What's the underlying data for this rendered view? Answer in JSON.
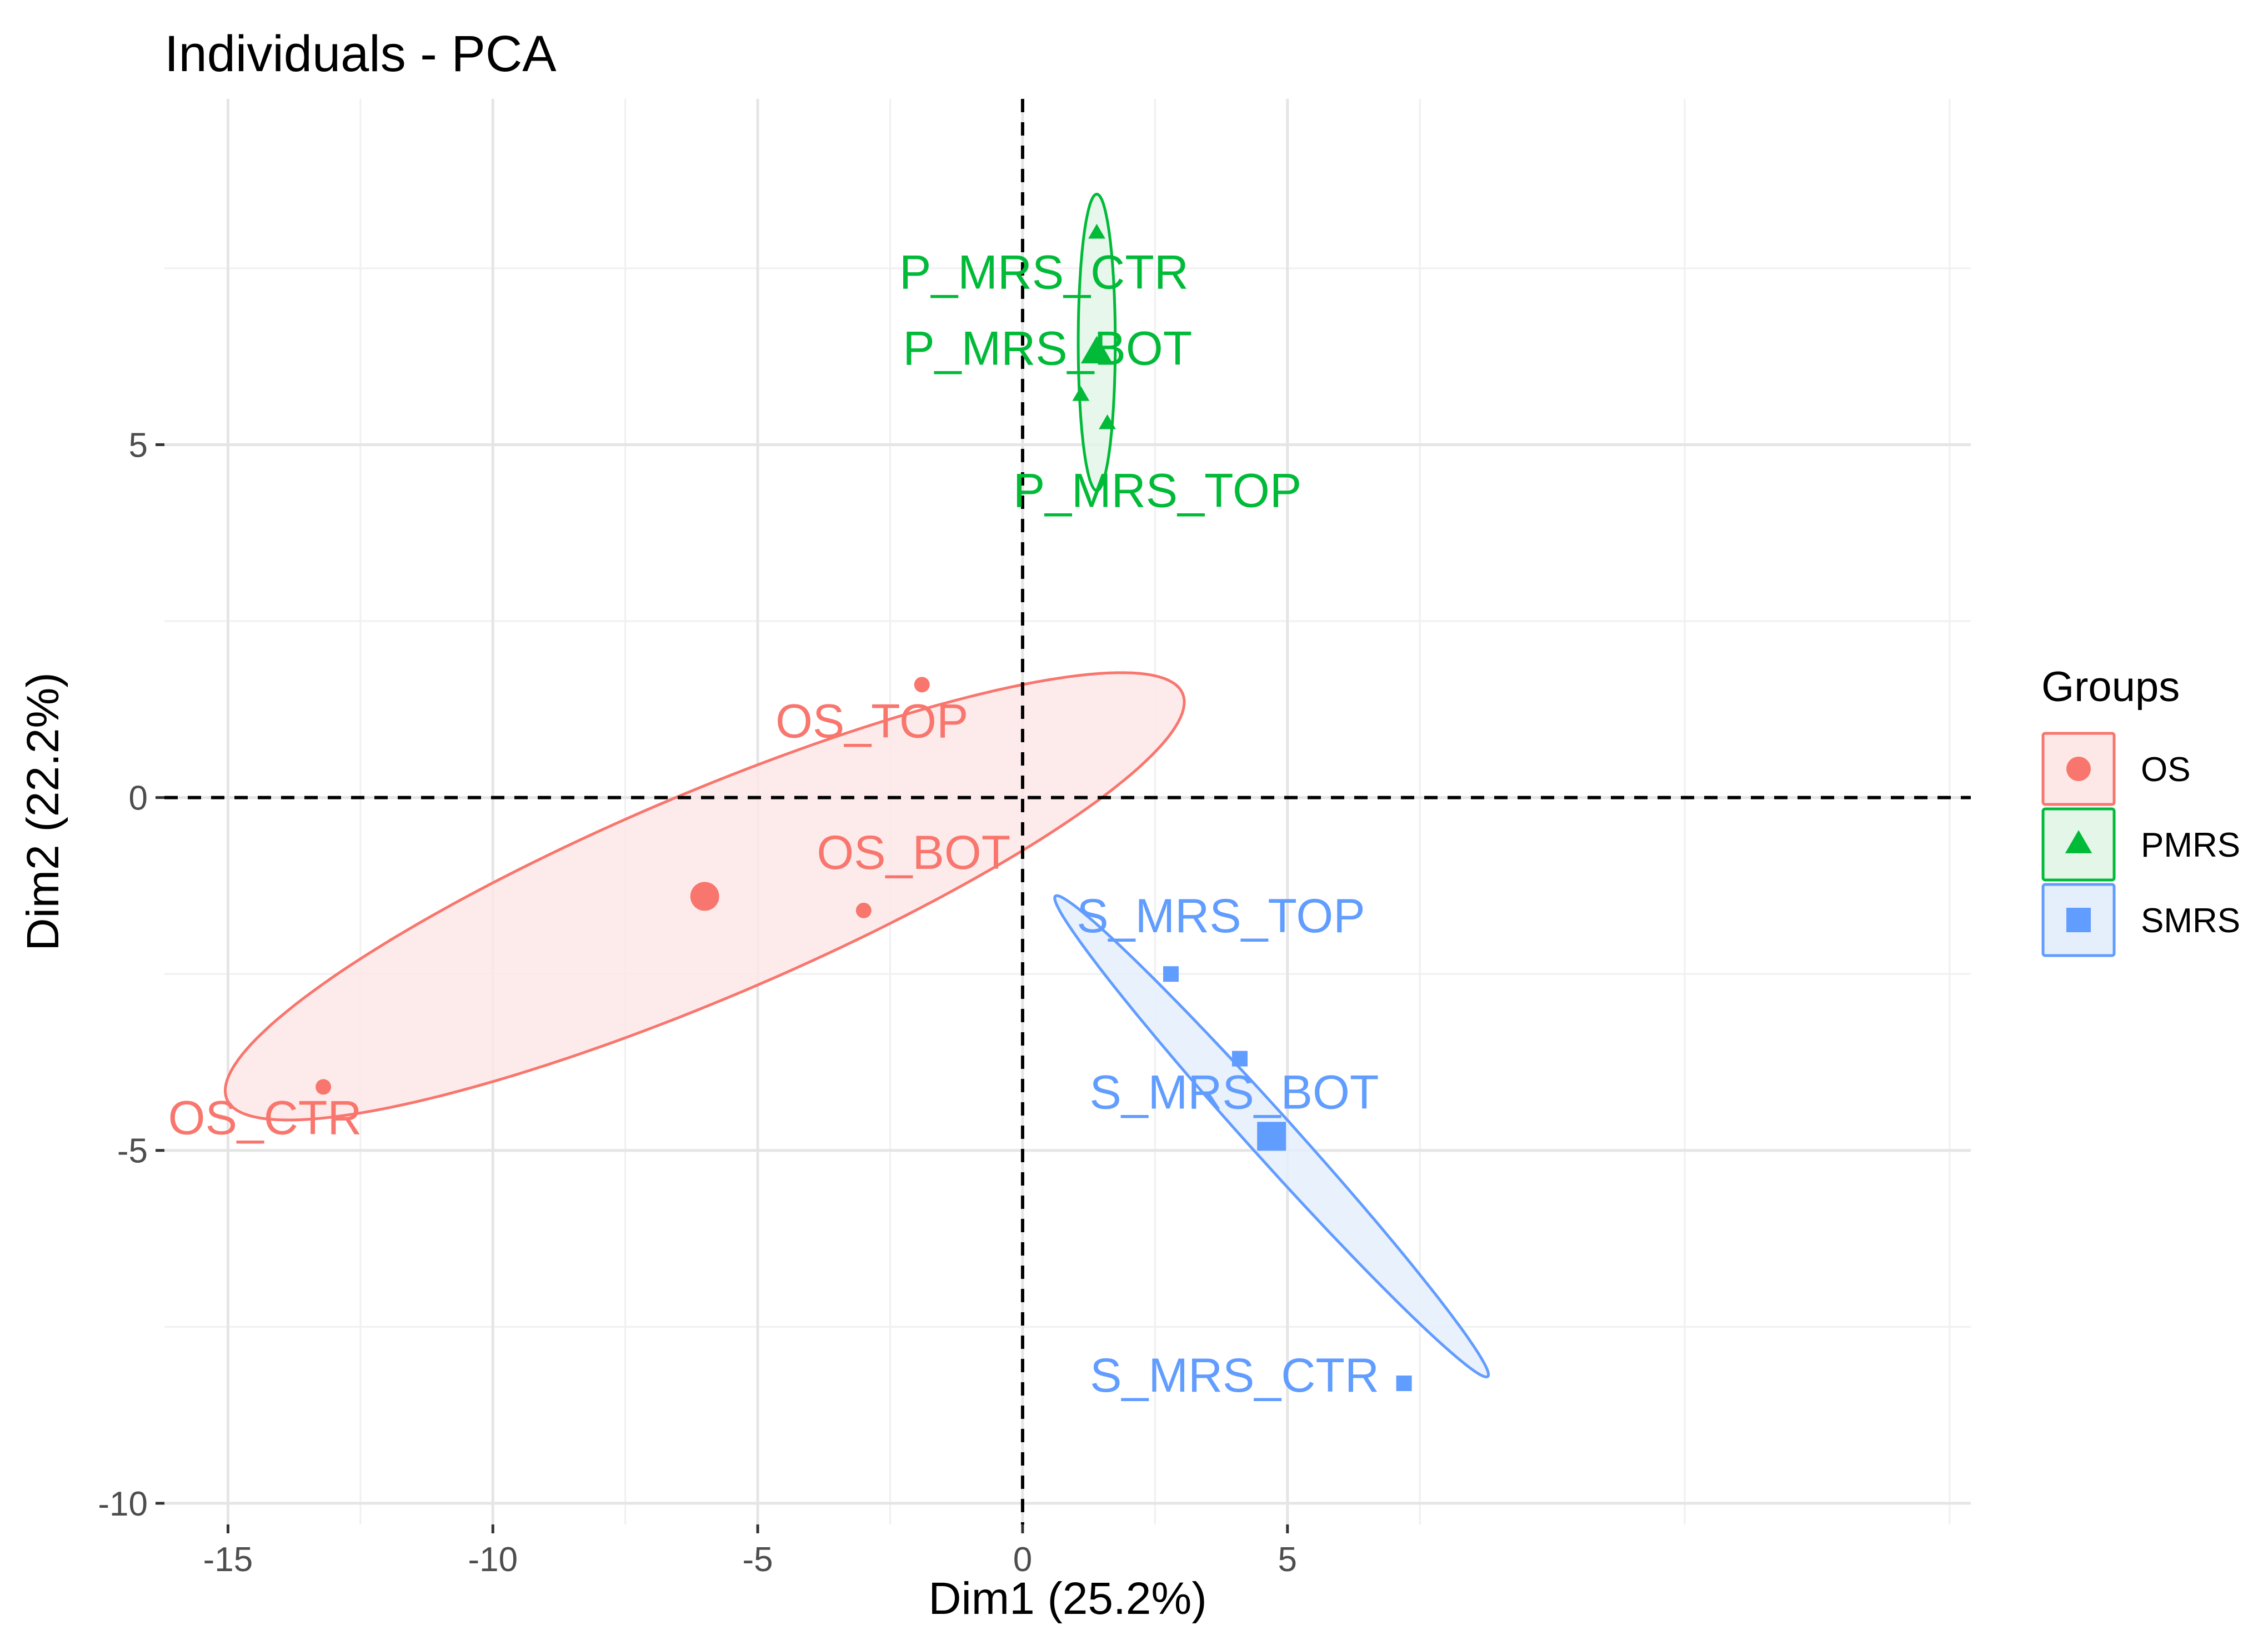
{
  "chart_data": {
    "type": "scatter",
    "title": "Individuals - PCA",
    "xlabel": "Dim1 (25.2%)",
    "ylabel": "Dim2 (22.2%)",
    "xlim": [
      -16.2,
      17.9
    ],
    "ylim": [
      -10.3,
      9.9
    ],
    "xticks": [
      -15,
      -10,
      -5,
      0,
      5
    ],
    "xtick_labels": [
      "-15",
      "-10",
      "-5",
      "0",
      "5"
    ],
    "yticks": [
      -10,
      -5,
      0,
      5
    ],
    "ytick_labels": [
      "-10",
      "-5",
      "0",
      "5"
    ],
    "grid": true,
    "reference_lines": {
      "x": 0,
      "y": 0,
      "style": "dashed"
    },
    "legend": {
      "title": "Groups",
      "position": "right",
      "entries": [
        {
          "name": "OS",
          "shape": "circle",
          "color": "#F8766D"
        },
        {
          "name": "PMRS",
          "shape": "triangle",
          "color": "#00BA38"
        },
        {
          "name": "SMRS",
          "shape": "square",
          "color": "#619CFF"
        }
      ]
    },
    "series": [
      {
        "name": "OS",
        "shape": "circle",
        "color": "#F8766D",
        "ellipse_fill": "#FDE8E7",
        "points": [
          {
            "label": "OS_TOP",
            "x": -1.9,
            "y": 1.6
          },
          {
            "label": "OS_BOT",
            "x": -3.0,
            "y": -1.6
          },
          {
            "label": "OS_CTR",
            "x": -13.2,
            "y": -4.1
          }
        ],
        "centroid": {
          "x": -6.0,
          "y": -1.4
        },
        "ellipse": {
          "cx": -6.0,
          "cy": -1.4,
          "rx": 9.8,
          "ry": 1.45,
          "angle_deg": 23
        }
      },
      {
        "name": "PMRS",
        "shape": "triangle",
        "color": "#00BA38",
        "ellipse_fill": "#E3F6E7",
        "points": [
          {
            "label": "P_MRS_CTR",
            "x": 1.4,
            "y": 8.0
          },
          {
            "label": "P_MRS_BOT",
            "x": 1.1,
            "y": 5.7
          },
          {
            "label": "P_MRS_TOP",
            "x": 1.6,
            "y": 5.3
          }
        ],
        "centroid": {
          "x": 1.4,
          "y": 6.3
        },
        "ellipse": {
          "cx": 1.4,
          "cy": 6.45,
          "rx": 0.35,
          "ry": 2.1,
          "angle_deg": 0
        }
      },
      {
        "name": "SMRS",
        "shape": "square",
        "color": "#619CFF",
        "ellipse_fill": "#E5EEFB",
        "points": [
          {
            "label": "S_MRS_TOP",
            "x": 2.8,
            "y": -2.5
          },
          {
            "label": "S_MRS_BOT",
            "x": 4.1,
            "y": -3.7
          },
          {
            "label": "S_MRS_CTR",
            "x": 7.2,
            "y": -8.3
          }
        ],
        "centroid": {
          "x": 4.7,
          "y": -4.8
        },
        "ellipse": {
          "cx": 4.7,
          "cy": -4.8,
          "rx": 6.1,
          "ry": 0.32,
          "angle_deg": -48
        }
      }
    ]
  }
}
